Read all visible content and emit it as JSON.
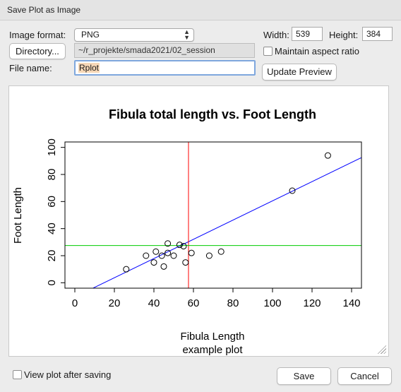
{
  "window": {
    "title": "Save Plot as Image"
  },
  "format": {
    "label": "Image format:",
    "value": "PNG"
  },
  "width": {
    "label": "Width:",
    "value": "539"
  },
  "height": {
    "label": "Height:",
    "value": "384"
  },
  "directory": {
    "button_label": "Directory...",
    "path": "~/r_projekte/smada2021/02_session"
  },
  "aspect": {
    "label": "Maintain aspect ratio",
    "checked": false
  },
  "file": {
    "label": "File name:",
    "value": "Rplot"
  },
  "update_label": "Update Preview",
  "view_after_label": "View plot after saving",
  "save_label": "Save",
  "cancel_label": "Cancel",
  "chart_data": {
    "type": "scatter",
    "title": "Fibula total length vs. Foot Length",
    "xlabel": "Fibula Length",
    "xlabel2": "example plot",
    "ylabel": "Foot Length",
    "xlim": [
      -5,
      145
    ],
    "ylim": [
      -4,
      104
    ],
    "xticks": [
      0,
      20,
      40,
      60,
      80,
      100,
      120,
      140
    ],
    "yticks": [
      0,
      20,
      40,
      60,
      80,
      100
    ],
    "points": [
      {
        "x": 26,
        "y": 10
      },
      {
        "x": 36,
        "y": 20
      },
      {
        "x": 40,
        "y": 15
      },
      {
        "x": 41,
        "y": 23
      },
      {
        "x": 44,
        "y": 20
      },
      {
        "x": 45,
        "y": 12
      },
      {
        "x": 47,
        "y": 29
      },
      {
        "x": 47,
        "y": 22
      },
      {
        "x": 50,
        "y": 20
      },
      {
        "x": 53,
        "y": 28
      },
      {
        "x": 55,
        "y": 27
      },
      {
        "x": 56,
        "y": 15
      },
      {
        "x": 59,
        "y": 22
      },
      {
        "x": 68,
        "y": 20
      },
      {
        "x": 74,
        "y": 23
      },
      {
        "x": 110,
        "y": 68
      },
      {
        "x": 128,
        "y": 94
      }
    ],
    "regression": {
      "intercept": -10.5,
      "slope": 0.71,
      "color": "#0000ff"
    },
    "vline": {
      "x": 57.5,
      "color": "#ff0000"
    },
    "hline": {
      "y": 27.5,
      "color": "#00cc00"
    }
  }
}
